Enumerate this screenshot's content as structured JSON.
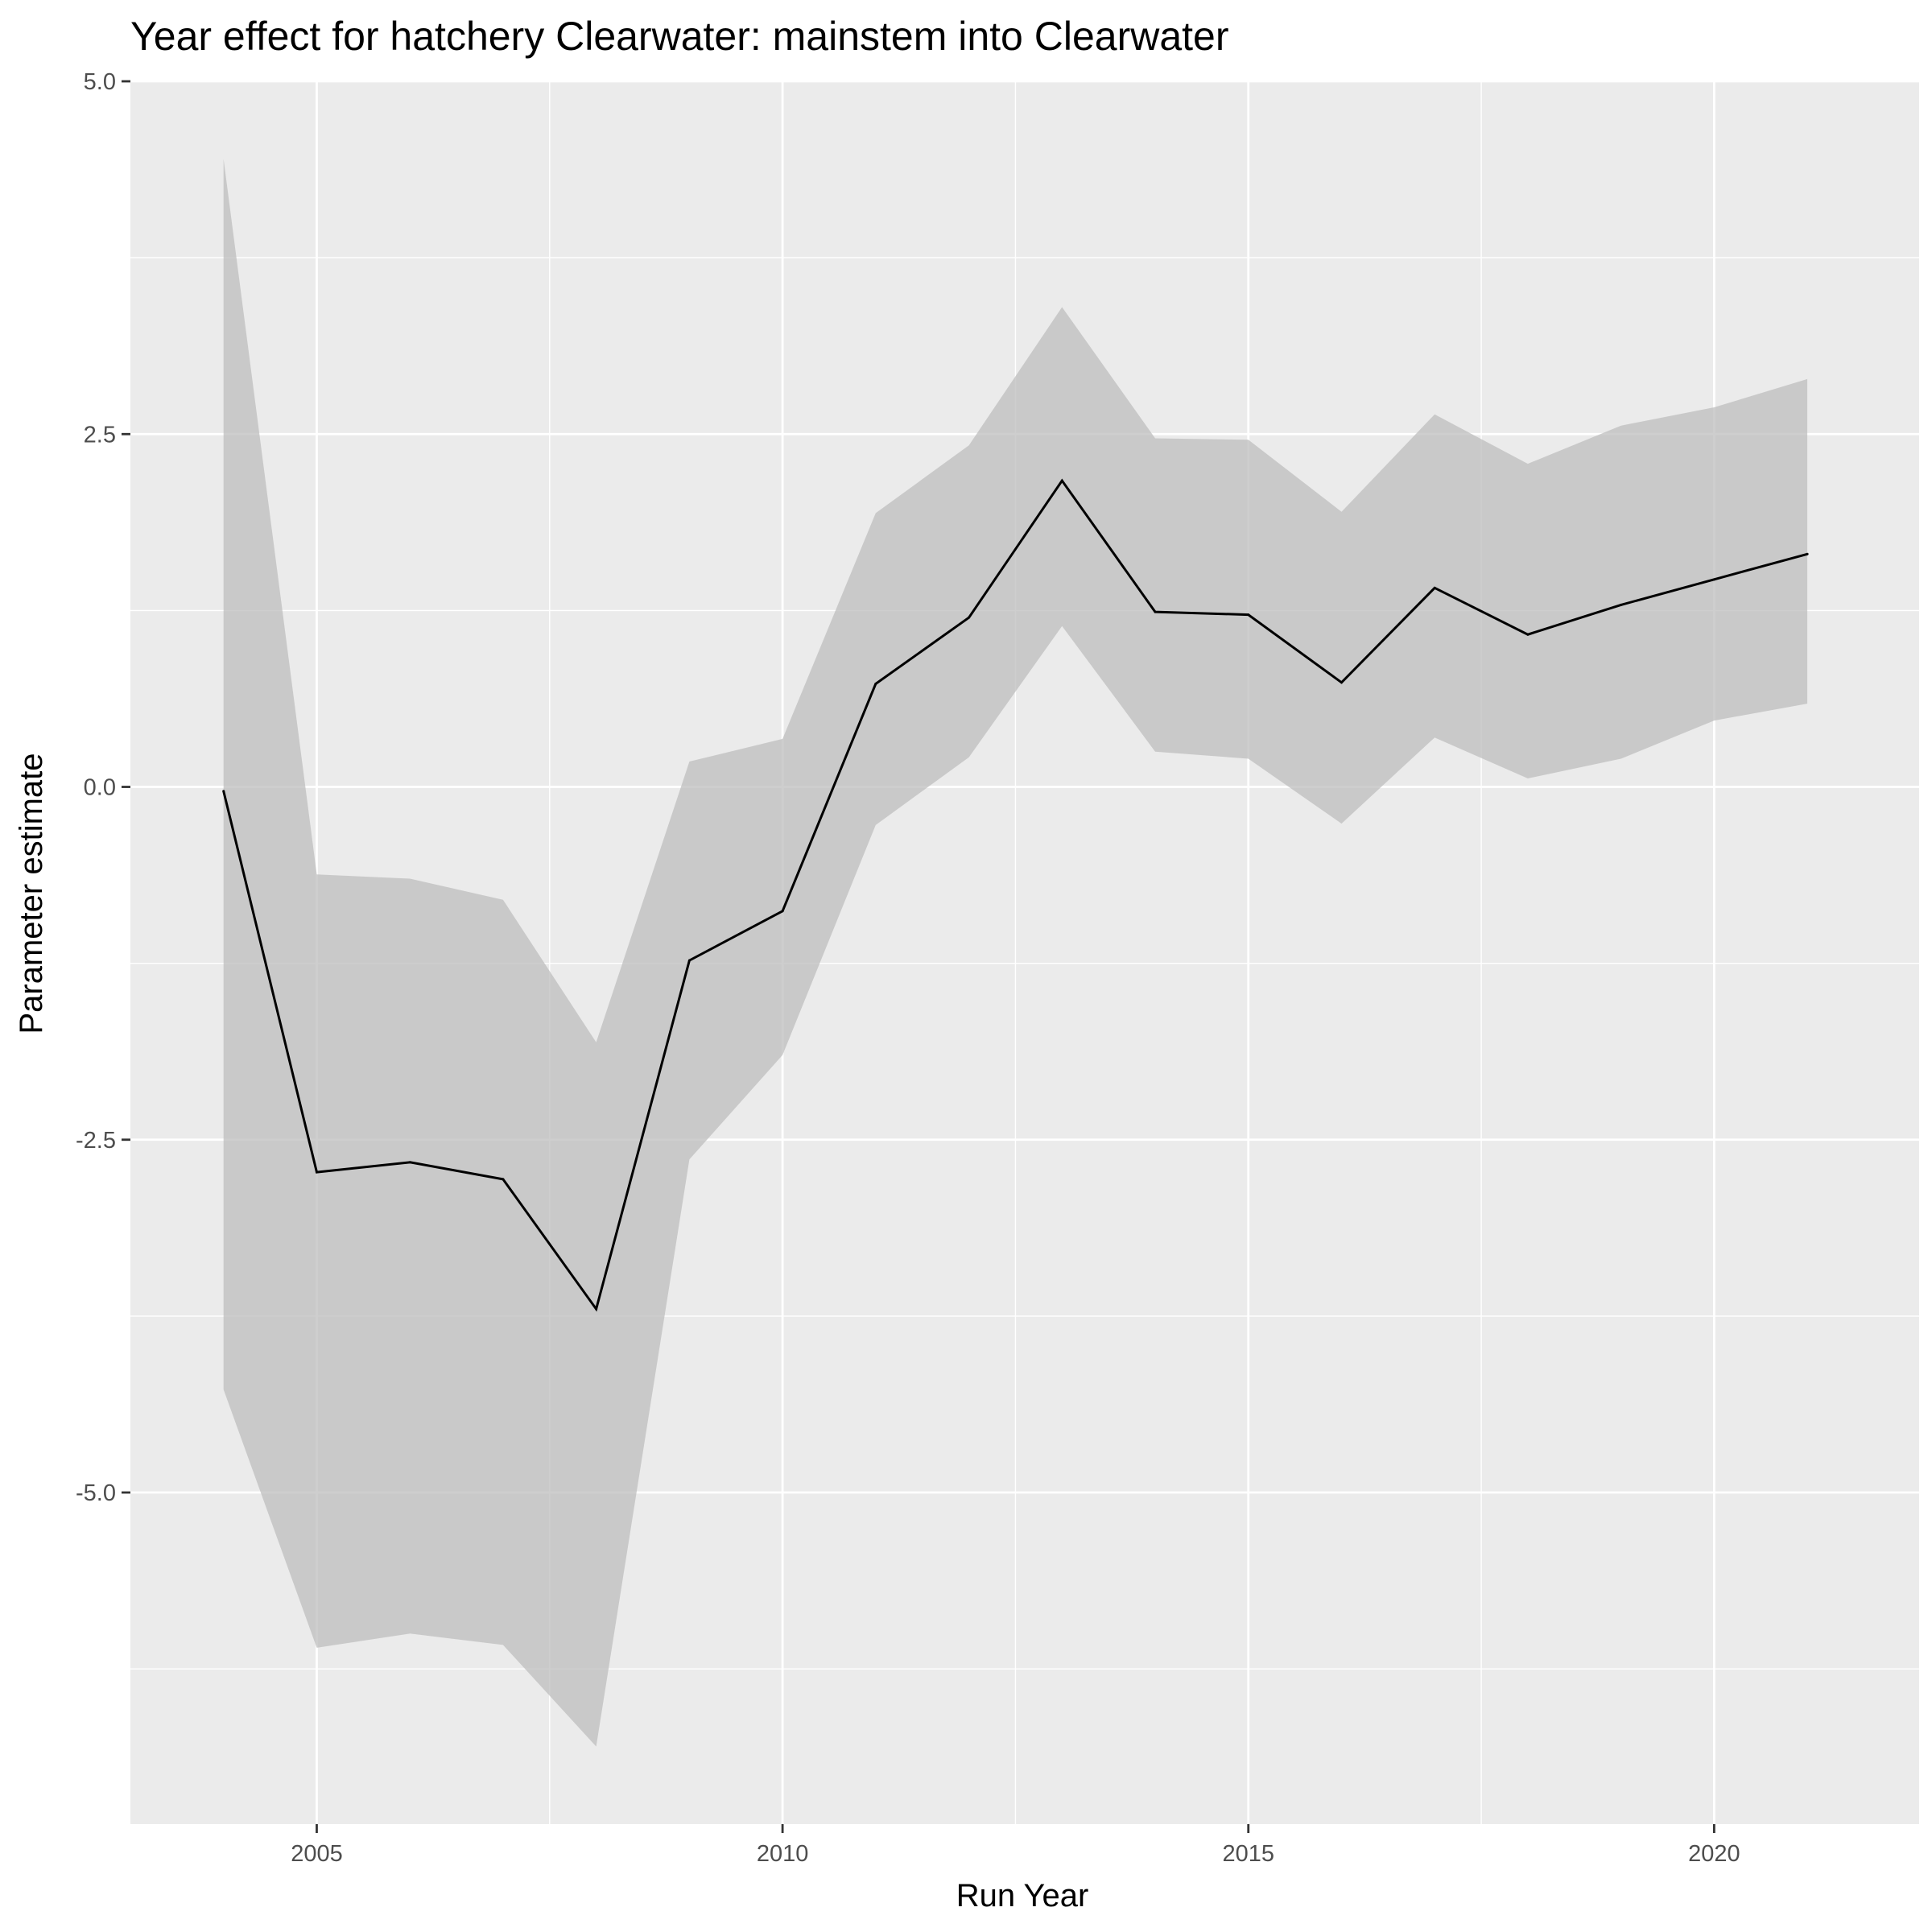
{
  "chart_data": {
    "type": "line",
    "title": "Year effect for hatchery Clearwater: mainstem into Clearwater",
    "xlabel": "Run Year",
    "ylabel": "Parameter estimate",
    "xlim": [
      2003,
      2022.2
    ],
    "ylim": [
      -7.35,
      5.0
    ],
    "x_ticks": [
      2005,
      2010,
      2015,
      2020
    ],
    "y_ticks": [
      5.0,
      2.5,
      0.0,
      -2.5,
      -5.0
    ],
    "y_tick_labels": [
      "5.0",
      "2.5",
      "0.0",
      "-2.5",
      "-5.0"
    ],
    "grid": true,
    "x": [
      2004,
      2005,
      2006,
      2007,
      2008,
      2009,
      2010,
      2011,
      2012,
      2013,
      2014,
      2015,
      2016,
      2017,
      2018,
      2019,
      2020,
      2021
    ],
    "series": [
      {
        "name": "estimate",
        "values": [
          -0.03,
          -2.73,
          -2.66,
          -2.78,
          -3.7,
          -1.23,
          -0.88,
          0.73,
          1.2,
          2.17,
          1.24,
          1.22,
          0.74,
          1.41,
          1.08,
          1.29,
          1.47,
          1.65
        ]
      }
    ],
    "ribbon": {
      "name": "confidence interval",
      "lower": [
        -4.27,
        -6.1,
        -6.0,
        -6.08,
        -6.8,
        -2.64,
        -1.9,
        -0.27,
        0.21,
        1.14,
        0.25,
        0.2,
        -0.26,
        0.35,
        0.06,
        0.2,
        0.47,
        0.59
      ],
      "upper": [
        4.45,
        -0.62,
        -0.65,
        -0.8,
        -1.81,
        0.18,
        0.34,
        1.94,
        2.42,
        3.4,
        2.47,
        2.46,
        1.95,
        2.64,
        2.29,
        2.56,
        2.69,
        2.89
      ]
    }
  }
}
